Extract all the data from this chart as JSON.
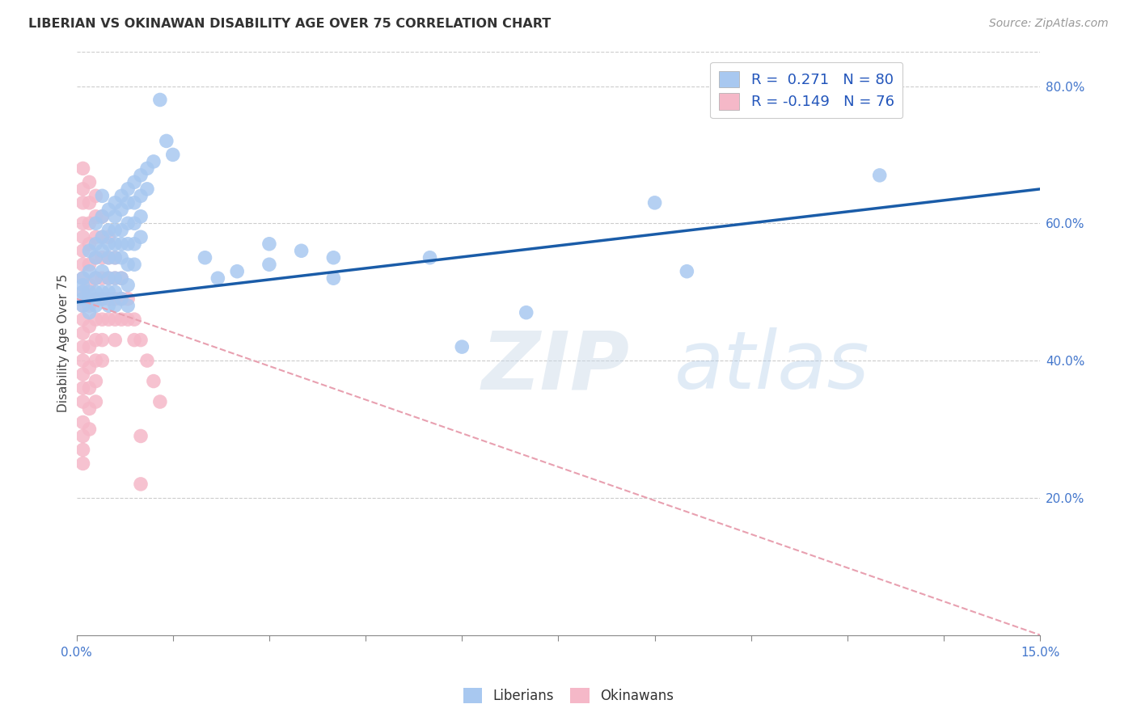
{
  "title": "LIBERIAN VS OKINAWAN DISABILITY AGE OVER 75 CORRELATION CHART",
  "source": "Source: ZipAtlas.com",
  "ylabel": "Disability Age Over 75",
  "xlim": [
    0.0,
    0.15
  ],
  "ylim": [
    0.0,
    0.85
  ],
  "background_color": "#ffffff",
  "grid_color": "#cccccc",
  "watermark": "ZIPatlas",
  "liberian_color": "#a8c8f0",
  "okinawan_color": "#f5b8c8",
  "line_blue": "#1a5ca8",
  "line_pink": "#e8a0b0",
  "liberian_scatter": [
    [
      0.001,
      0.51
    ],
    [
      0.001,
      0.5
    ],
    [
      0.001,
      0.49
    ],
    [
      0.001,
      0.48
    ],
    [
      0.001,
      0.52
    ],
    [
      0.002,
      0.56
    ],
    [
      0.002,
      0.53
    ],
    [
      0.002,
      0.5
    ],
    [
      0.002,
      0.49
    ],
    [
      0.002,
      0.47
    ],
    [
      0.003,
      0.6
    ],
    [
      0.003,
      0.57
    ],
    [
      0.003,
      0.55
    ],
    [
      0.003,
      0.52
    ],
    [
      0.003,
      0.5
    ],
    [
      0.003,
      0.48
    ],
    [
      0.004,
      0.64
    ],
    [
      0.004,
      0.61
    ],
    [
      0.004,
      0.58
    ],
    [
      0.004,
      0.56
    ],
    [
      0.004,
      0.53
    ],
    [
      0.004,
      0.5
    ],
    [
      0.004,
      0.49
    ],
    [
      0.005,
      0.62
    ],
    [
      0.005,
      0.59
    ],
    [
      0.005,
      0.57
    ],
    [
      0.005,
      0.55
    ],
    [
      0.005,
      0.52
    ],
    [
      0.005,
      0.5
    ],
    [
      0.005,
      0.48
    ],
    [
      0.006,
      0.63
    ],
    [
      0.006,
      0.61
    ],
    [
      0.006,
      0.59
    ],
    [
      0.006,
      0.57
    ],
    [
      0.006,
      0.55
    ],
    [
      0.006,
      0.52
    ],
    [
      0.006,
      0.5
    ],
    [
      0.006,
      0.48
    ],
    [
      0.007,
      0.64
    ],
    [
      0.007,
      0.62
    ],
    [
      0.007,
      0.59
    ],
    [
      0.007,
      0.57
    ],
    [
      0.007,
      0.55
    ],
    [
      0.007,
      0.52
    ],
    [
      0.007,
      0.49
    ],
    [
      0.008,
      0.65
    ],
    [
      0.008,
      0.63
    ],
    [
      0.008,
      0.6
    ],
    [
      0.008,
      0.57
    ],
    [
      0.008,
      0.54
    ],
    [
      0.008,
      0.51
    ],
    [
      0.008,
      0.48
    ],
    [
      0.009,
      0.66
    ],
    [
      0.009,
      0.63
    ],
    [
      0.009,
      0.6
    ],
    [
      0.009,
      0.57
    ],
    [
      0.009,
      0.54
    ],
    [
      0.01,
      0.67
    ],
    [
      0.01,
      0.64
    ],
    [
      0.01,
      0.61
    ],
    [
      0.01,
      0.58
    ],
    [
      0.011,
      0.68
    ],
    [
      0.011,
      0.65
    ],
    [
      0.012,
      0.69
    ],
    [
      0.013,
      0.78
    ],
    [
      0.014,
      0.72
    ],
    [
      0.015,
      0.7
    ],
    [
      0.02,
      0.55
    ],
    [
      0.022,
      0.52
    ],
    [
      0.025,
      0.53
    ],
    [
      0.03,
      0.57
    ],
    [
      0.03,
      0.54
    ],
    [
      0.035,
      0.56
    ],
    [
      0.04,
      0.55
    ],
    [
      0.04,
      0.52
    ],
    [
      0.055,
      0.55
    ],
    [
      0.06,
      0.42
    ],
    [
      0.07,
      0.47
    ],
    [
      0.09,
      0.63
    ],
    [
      0.095,
      0.53
    ],
    [
      0.125,
      0.67
    ]
  ],
  "okinawan_scatter": [
    [
      0.001,
      0.68
    ],
    [
      0.001,
      0.65
    ],
    [
      0.001,
      0.63
    ],
    [
      0.001,
      0.6
    ],
    [
      0.001,
      0.58
    ],
    [
      0.001,
      0.56
    ],
    [
      0.001,
      0.54
    ],
    [
      0.001,
      0.52
    ],
    [
      0.001,
      0.5
    ],
    [
      0.001,
      0.48
    ],
    [
      0.001,
      0.46
    ],
    [
      0.001,
      0.44
    ],
    [
      0.001,
      0.42
    ],
    [
      0.001,
      0.4
    ],
    [
      0.001,
      0.38
    ],
    [
      0.001,
      0.36
    ],
    [
      0.001,
      0.34
    ],
    [
      0.001,
      0.31
    ],
    [
      0.001,
      0.29
    ],
    [
      0.001,
      0.27
    ],
    [
      0.001,
      0.25
    ],
    [
      0.002,
      0.66
    ],
    [
      0.002,
      0.63
    ],
    [
      0.002,
      0.6
    ],
    [
      0.002,
      0.57
    ],
    [
      0.002,
      0.54
    ],
    [
      0.002,
      0.51
    ],
    [
      0.002,
      0.48
    ],
    [
      0.002,
      0.45
    ],
    [
      0.002,
      0.42
    ],
    [
      0.002,
      0.39
    ],
    [
      0.002,
      0.36
    ],
    [
      0.002,
      0.33
    ],
    [
      0.002,
      0.3
    ],
    [
      0.003,
      0.64
    ],
    [
      0.003,
      0.61
    ],
    [
      0.003,
      0.58
    ],
    [
      0.003,
      0.55
    ],
    [
      0.003,
      0.52
    ],
    [
      0.003,
      0.49
    ],
    [
      0.003,
      0.46
    ],
    [
      0.003,
      0.43
    ],
    [
      0.003,
      0.4
    ],
    [
      0.003,
      0.37
    ],
    [
      0.003,
      0.34
    ],
    [
      0.004,
      0.61
    ],
    [
      0.004,
      0.58
    ],
    [
      0.004,
      0.55
    ],
    [
      0.004,
      0.52
    ],
    [
      0.004,
      0.49
    ],
    [
      0.004,
      0.46
    ],
    [
      0.004,
      0.43
    ],
    [
      0.004,
      0.4
    ],
    [
      0.005,
      0.58
    ],
    [
      0.005,
      0.55
    ],
    [
      0.005,
      0.52
    ],
    [
      0.005,
      0.49
    ],
    [
      0.005,
      0.46
    ],
    [
      0.006,
      0.55
    ],
    [
      0.006,
      0.52
    ],
    [
      0.006,
      0.49
    ],
    [
      0.006,
      0.46
    ],
    [
      0.006,
      0.43
    ],
    [
      0.007,
      0.52
    ],
    [
      0.007,
      0.49
    ],
    [
      0.007,
      0.46
    ],
    [
      0.008,
      0.49
    ],
    [
      0.008,
      0.46
    ],
    [
      0.009,
      0.46
    ],
    [
      0.009,
      0.43
    ],
    [
      0.01,
      0.43
    ],
    [
      0.011,
      0.4
    ],
    [
      0.012,
      0.37
    ],
    [
      0.013,
      0.34
    ],
    [
      0.01,
      0.22
    ],
    [
      0.01,
      0.29
    ]
  ],
  "blue_line": [
    [
      0.0,
      0.485
    ],
    [
      0.15,
      0.65
    ]
  ],
  "pink_line": [
    [
      0.0,
      0.49
    ],
    [
      0.15,
      0.0
    ]
  ]
}
